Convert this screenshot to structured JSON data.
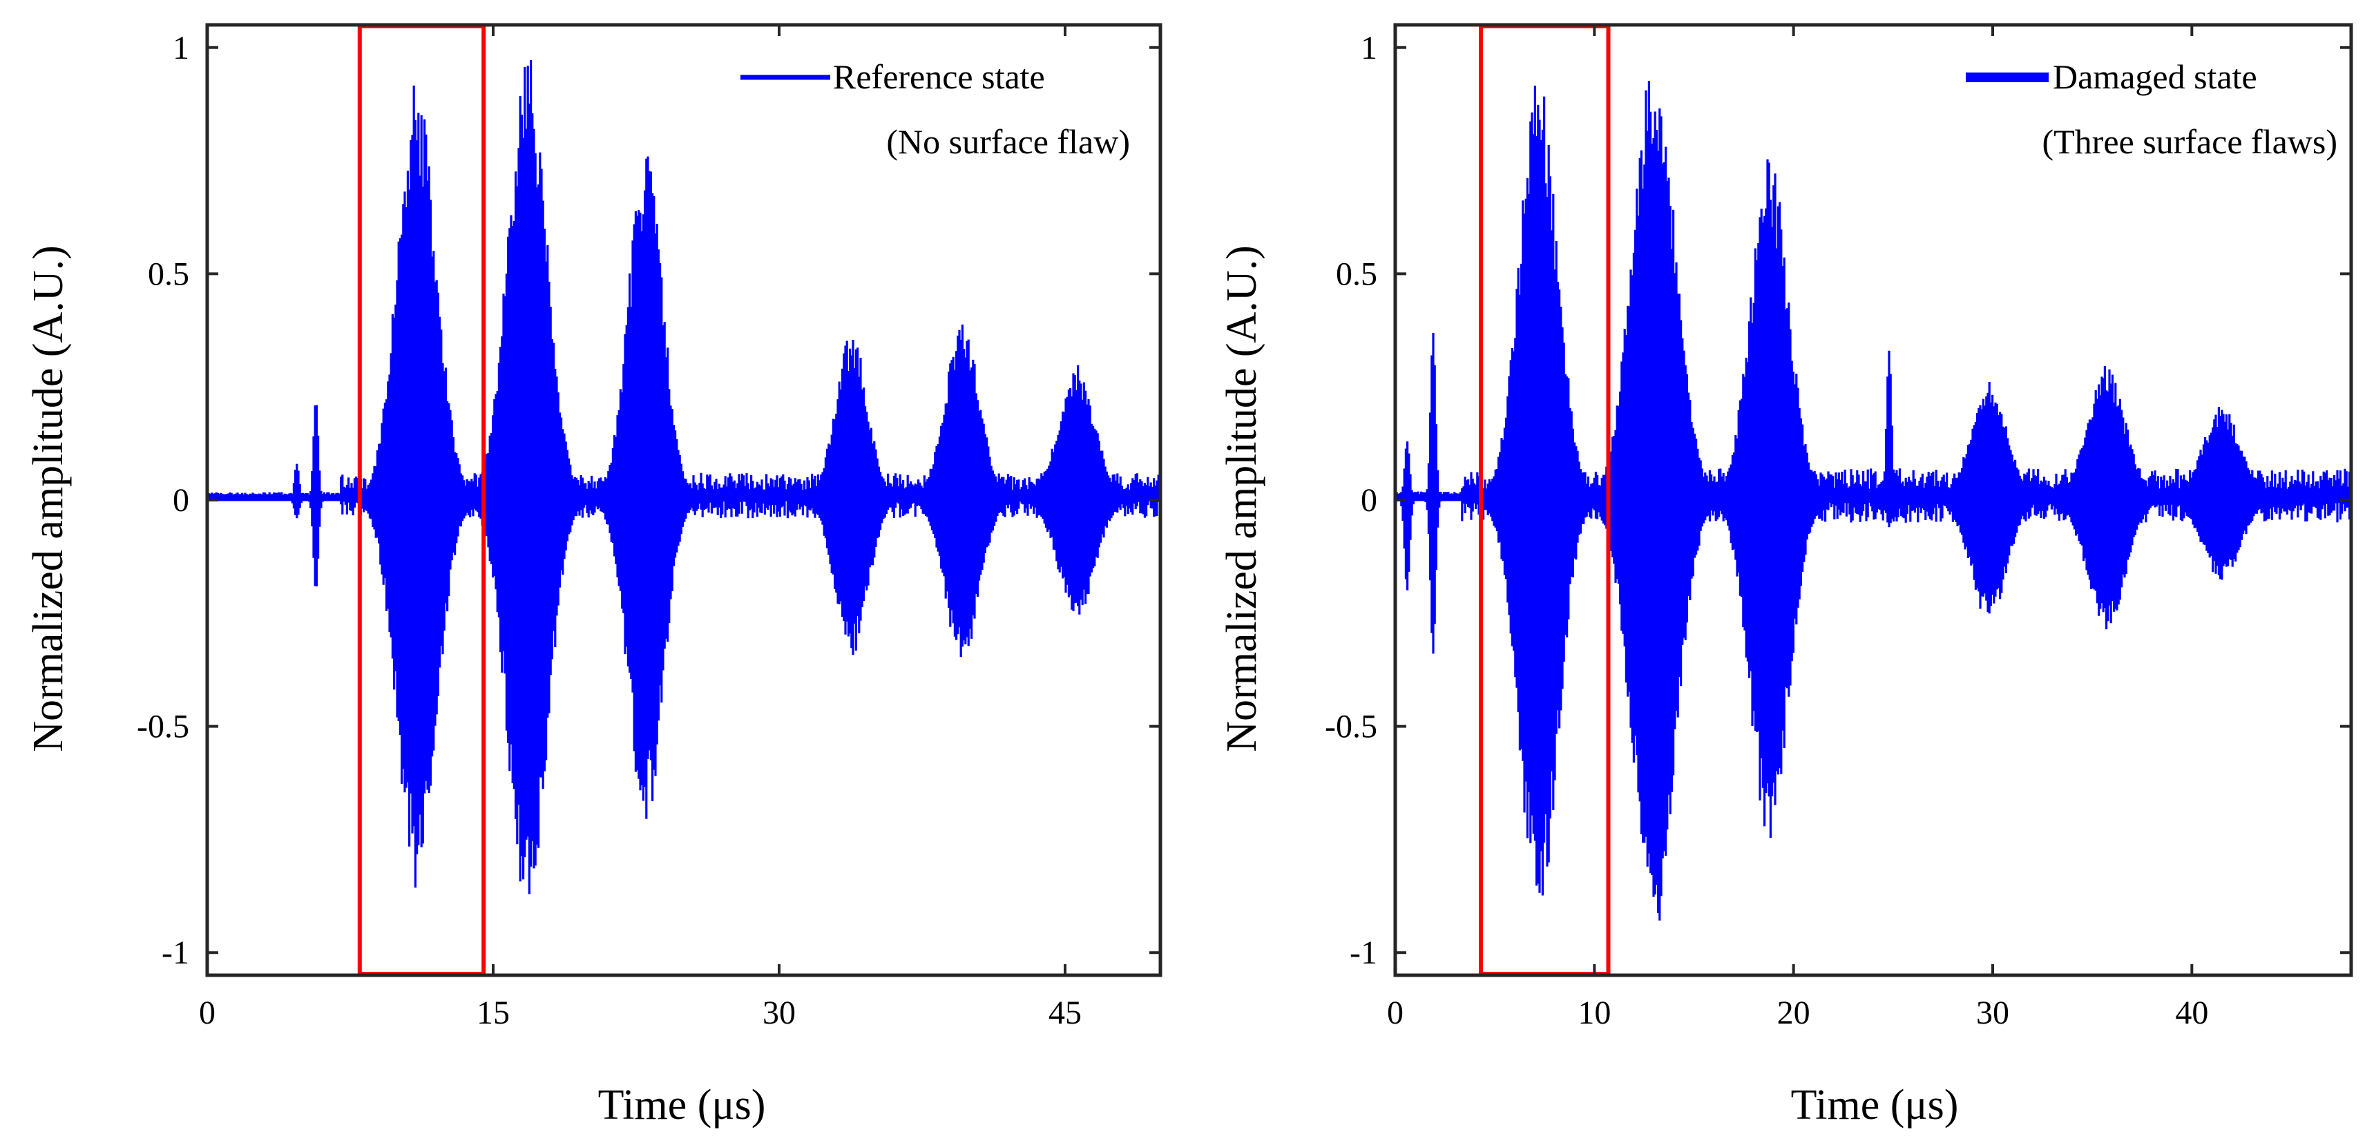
{
  "chart_data": [
    {
      "type": "line",
      "xlabel": "Time (μs)",
      "ylabel": "Normalized amplitude (A.U.)",
      "xlim": [
        0,
        50
      ],
      "ylim": [
        -1.05,
        1.05
      ],
      "xticks": [
        0,
        15,
        30,
        45
      ],
      "yticks": [
        1,
        0.5,
        0,
        -0.5,
        -1
      ],
      "xtick_labels": [
        "0",
        "15",
        "30",
        "45"
      ],
      "ytick_labels": [
        "1",
        "0.5",
        "0",
        "-0.5",
        "-1"
      ],
      "legend": {
        "position": "top-right",
        "lines": [
          "Reference state",
          "(No surface flaw)"
        ]
      },
      "series": [
        {
          "name": "Reference state",
          "color": "#0000ff",
          "spikes": [
            {
              "t": 4.7,
              "max": 0.08,
              "min": -0.04
            },
            {
              "t": 5.7,
              "max": 0.22,
              "min": -0.2
            }
          ],
          "packets": [
            {
              "t": 11.0,
              "max": 0.93,
              "min": -0.87,
              "width_us": 1.8
            },
            {
              "t": 16.8,
              "max": 1.0,
              "min": -0.93,
              "width_us": 1.8
            },
            {
              "t": 23.0,
              "max": 0.78,
              "min": -0.72,
              "width_us": 1.6
            },
            {
              "t": 33.8,
              "max": 0.37,
              "min": -0.35,
              "width_us": 1.5
            },
            {
              "t": 39.6,
              "max": 0.4,
              "min": -0.36,
              "width_us": 1.6
            },
            {
              "t": 45.6,
              "max": 0.3,
              "min": -0.26,
              "width_us": 1.7
            }
          ],
          "noise_floor": 0.05
        }
      ],
      "highlight_box": {
        "x_start": 8.0,
        "x_end": 14.5,
        "color": "#ff0000"
      }
    },
    {
      "type": "line",
      "xlabel": "Time (μs)",
      "ylabel": "Normalized amplitude (A.U.)",
      "xlim": [
        0,
        48
      ],
      "ylim": [
        -1.05,
        1.05
      ],
      "xticks": [
        0,
        10,
        20,
        30,
        40
      ],
      "yticks": [
        1,
        0.5,
        0,
        -0.5,
        -1
      ],
      "xtick_labels": [
        "0",
        "10",
        "20",
        "30",
        "40"
      ],
      "ytick_labels": [
        "1",
        "0.5",
        "0",
        "-0.5",
        "-1"
      ],
      "legend": {
        "position": "top-right",
        "lines": [
          "Damaged state",
          "(Three surface flaws)"
        ]
      },
      "series": [
        {
          "name": "Damaged state",
          "color": "#0000ff",
          "spikes": [
            {
              "t": 0.6,
              "max": 0.13,
              "min": -0.2
            },
            {
              "t": 1.9,
              "max": 0.37,
              "min": -0.34
            },
            {
              "t": 24.8,
              "max": 0.33,
              "min": -0.06
            }
          ],
          "packets": [
            {
              "t": 7.2,
              "max": 0.94,
              "min": -0.94,
              "width_us": 1.7
            },
            {
              "t": 13.0,
              "max": 1.0,
              "min": -0.97,
              "width_us": 1.9
            },
            {
              "t": 18.8,
              "max": 0.76,
              "min": -0.76,
              "width_us": 1.7
            },
            {
              "t": 29.8,
              "max": 0.27,
              "min": -0.27,
              "width_us": 1.6
            },
            {
              "t": 35.7,
              "max": 0.3,
              "min": -0.29,
              "width_us": 1.7
            },
            {
              "t": 41.5,
              "max": 0.21,
              "min": -0.18,
              "width_us": 1.7
            }
          ],
          "noise_floor": 0.06
        }
      ],
      "highlight_box": {
        "x_start": 4.3,
        "x_end": 10.7,
        "color": "#ff0000"
      }
    }
  ]
}
